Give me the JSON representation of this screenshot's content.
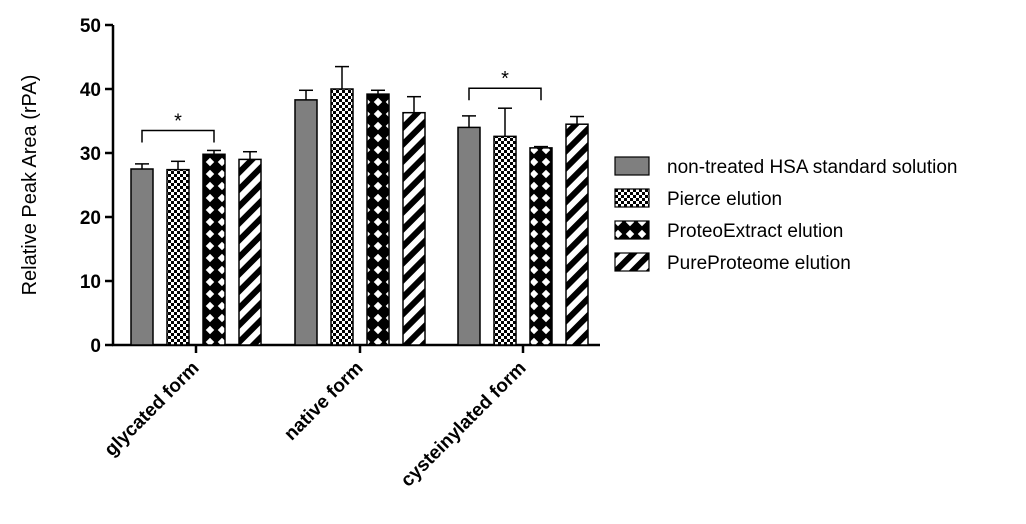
{
  "chart_data": {
    "type": "bar",
    "title": "",
    "xlabel": "",
    "ylabel": "Relative Peak Area (rPA)",
    "ylim": [
      0,
      50
    ],
    "yticks": [
      0,
      10,
      20,
      30,
      40,
      50
    ],
    "grid": false,
    "legend_position": "right",
    "categories": [
      "glycated form",
      "native form",
      "cysteinylated form"
    ],
    "series": [
      {
        "name": "non-treated HSA standard solution",
        "pattern": "solid-gray",
        "values": [
          27.5,
          38.3,
          34.0
        ],
        "errors": [
          0.8,
          1.5,
          1.8
        ]
      },
      {
        "name": "Pierce elution",
        "pattern": "checker",
        "values": [
          27.4,
          40.0,
          32.6
        ],
        "errors": [
          1.3,
          3.5,
          4.4
        ]
      },
      {
        "name": "ProteoExtract elution",
        "pattern": "crosshatch",
        "values": [
          29.8,
          39.2,
          30.8
        ],
        "errors": [
          0.6,
          0.6,
          0.2
        ]
      },
      {
        "name": "PureProteome elution",
        "pattern": "diagonal",
        "values": [
          29.0,
          36.3,
          34.5
        ],
        "errors": [
          1.2,
          2.5,
          1.2
        ]
      }
    ],
    "significance": [
      {
        "category": "glycated form",
        "from_series": 0,
        "to_series": 2,
        "label": "*"
      },
      {
        "category": "cysteinylated form",
        "from_series": 0,
        "to_series": 2,
        "label": "*"
      }
    ],
    "colors": {
      "gray_fill": "#7f7f7f",
      "ink": "#000000"
    }
  }
}
